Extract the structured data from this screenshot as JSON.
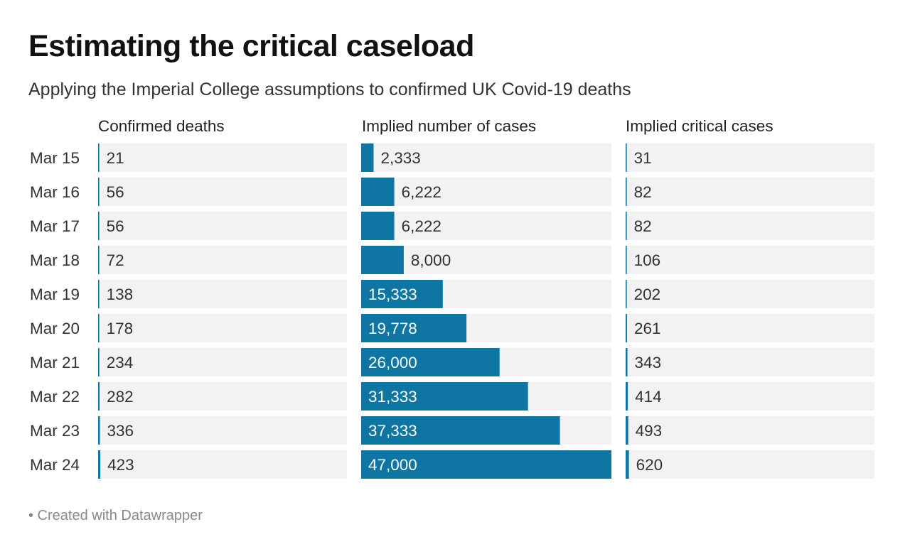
{
  "title": "Estimating the critical caseload",
  "subtitle": "Applying the Imperial College assumptions to confirmed UK Covid-19 deaths",
  "footer": "• Created with Datawrapper",
  "colors": {
    "bar_fill": "#0f76a3",
    "background_bar": "#f2f2f2",
    "text": "#333333",
    "text_on_bar": "#ffffff"
  },
  "chart_data": {
    "type": "bar",
    "orientation": "horizontal",
    "layout": "split-bars",
    "categories": [
      "Mar 15",
      "Mar 16",
      "Mar 17",
      "Mar 18",
      "Mar 19",
      "Mar 20",
      "Mar 21",
      "Mar 22",
      "Mar 23",
      "Mar 24"
    ],
    "series": [
      {
        "name": "Confirmed deaths",
        "values": [
          21,
          56,
          56,
          72,
          138,
          178,
          234,
          282,
          336,
          423
        ],
        "labels": [
          "21",
          "56",
          "56",
          "72",
          "138",
          "178",
          "234",
          "282",
          "336",
          "423"
        ],
        "max": 47000
      },
      {
        "name": "Implied number of cases",
        "values": [
          2333,
          6222,
          6222,
          8000,
          15333,
          19778,
          26000,
          31333,
          37333,
          47000
        ],
        "labels": [
          "2,333",
          "6,222",
          "6,222",
          "8,000",
          "15,333",
          "19,778",
          "26,000",
          "31,333",
          "37,333",
          "47,000"
        ],
        "max": 47000
      },
      {
        "name": "Implied critical cases",
        "values": [
          31,
          82,
          82,
          106,
          202,
          261,
          343,
          414,
          493,
          620
        ],
        "labels": [
          "31",
          "82",
          "82",
          "106",
          "202",
          "261",
          "343",
          "414",
          "493",
          "620"
        ],
        "max": 47000
      }
    ]
  }
}
